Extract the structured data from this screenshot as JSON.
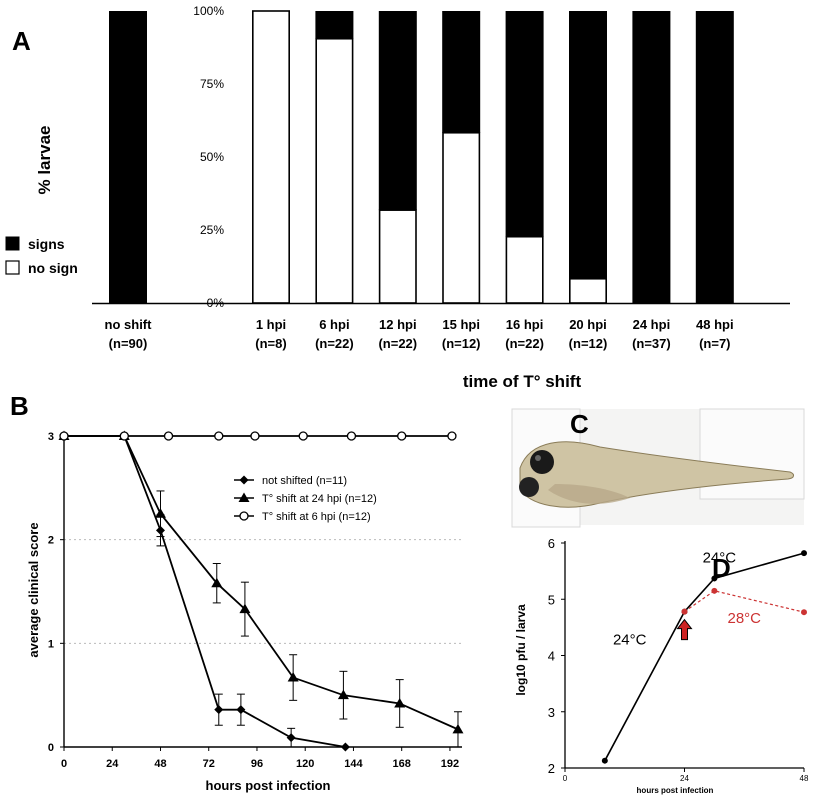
{
  "panels": {
    "a": "A",
    "b": "B",
    "c": "C",
    "d": "D"
  },
  "colors": {
    "signs": "#000000",
    "no_sign": "#ffffff",
    "shift_28": "#cc3333",
    "arrow": "#cc2222"
  },
  "chart_data": [
    {
      "type": "bar",
      "subtype": "stacked-100",
      "ylabel": "% larvae",
      "xlabel": "time of T° shift",
      "ylim": [
        0,
        100
      ],
      "y_ticks": [
        "0%",
        "25%",
        "50%",
        "75%",
        "100%"
      ],
      "legend": {
        "position": "left",
        "items": [
          {
            "name": "signs",
            "color": "#000000"
          },
          {
            "name": "no sign",
            "color": "#ffffff"
          }
        ]
      },
      "reference": {
        "label": "no shift",
        "n": "(n=90)",
        "no_sign": 0,
        "signs": 100
      },
      "categories": [
        "1 hpi",
        "6 hpi",
        "12 hpi",
        "15 hpi",
        "16 hpi",
        "20 hpi",
        "24 hpi",
        "48 hpi"
      ],
      "n_labels": [
        "(n=8)",
        "(n=22)",
        "(n=22)",
        "(n=12)",
        "(n=22)",
        "(n=12)",
        "(n=37)",
        "(n=7)"
      ],
      "series": [
        {
          "name": "no sign",
          "values": [
            100,
            90.5,
            31.8,
            58.3,
            22.7,
            8.3,
            0,
            0
          ]
        },
        {
          "name": "signs",
          "values": [
            0,
            9.5,
            68.2,
            41.7,
            77.3,
            91.7,
            100,
            100
          ]
        }
      ]
    },
    {
      "type": "line",
      "xlabel": "hours post infection",
      "ylabel": "average clinical score",
      "xlim": [
        0,
        198
      ],
      "ylim": [
        0,
        3
      ],
      "x_ticks": [
        0,
        24,
        48,
        72,
        96,
        120,
        144,
        168,
        192
      ],
      "y_ticks": [
        0,
        1,
        2,
        3
      ],
      "grid": "horizontal dotted",
      "legend_position": "upper-right",
      "series": [
        {
          "name": "not shifted (n=11)",
          "marker": "diamond",
          "x": [
            0,
            30,
            48,
            77,
            88,
            113,
            140
          ],
          "y": [
            3,
            3,
            2.09,
            0.36,
            0.36,
            0.09,
            0
          ],
          "err": [
            0,
            0,
            0.15,
            0.15,
            0.15,
            0.09,
            0
          ]
        },
        {
          "name": "T° shift at 24 hpi (n=12)",
          "marker": "triangle",
          "x": [
            0,
            30,
            48,
            76,
            90,
            114,
            139,
            167,
            196
          ],
          "y": [
            3,
            3,
            2.25,
            1.58,
            1.33,
            0.67,
            0.5,
            0.42,
            0.17
          ],
          "err": [
            0,
            0,
            0.22,
            0.19,
            0.26,
            0.22,
            0.23,
            0.23,
            0.17
          ]
        },
        {
          "name": "T° shift at 6 hpi (n=12)",
          "marker": "circle-open",
          "x": [
            0,
            30,
            52,
            77,
            95,
            119,
            143,
            168,
            193
          ],
          "y": [
            3,
            3,
            3,
            3,
            3,
            3,
            3,
            3,
            3
          ],
          "err": [
            0,
            0,
            0,
            0,
            0,
            0,
            0,
            0,
            0
          ]
        }
      ]
    },
    {
      "type": "line",
      "xlabel": "hours post infection",
      "ylabel": "log10 pfu / larva",
      "xlim": [
        0,
        48
      ],
      "ylim": [
        2,
        6
      ],
      "x_ticks": [
        0,
        24,
        48
      ],
      "y_ticks": [
        2,
        3,
        4,
        5,
        6
      ],
      "annotations": [
        {
          "text": "24°C",
          "x": 13,
          "y": 4.2,
          "color": "#000000"
        },
        {
          "text": "24°C",
          "x": 31,
          "y": 5.65,
          "color": "#000000"
        },
        {
          "text": "28°C",
          "x": 36,
          "y": 4.58,
          "color": "#cc3333"
        }
      ],
      "shift_arrow_x": 24,
      "series": [
        {
          "name": "24°C",
          "color": "#000000",
          "style": "solid",
          "x": [
            8,
            24,
            30,
            48
          ],
          "y": [
            2.13,
            4.78,
            5.37,
            5.82
          ]
        },
        {
          "name": "28°C",
          "color": "#cc3333",
          "style": "dashed",
          "x": [
            24,
            30,
            48
          ],
          "y": [
            4.78,
            5.15,
            4.77
          ]
        }
      ]
    }
  ]
}
